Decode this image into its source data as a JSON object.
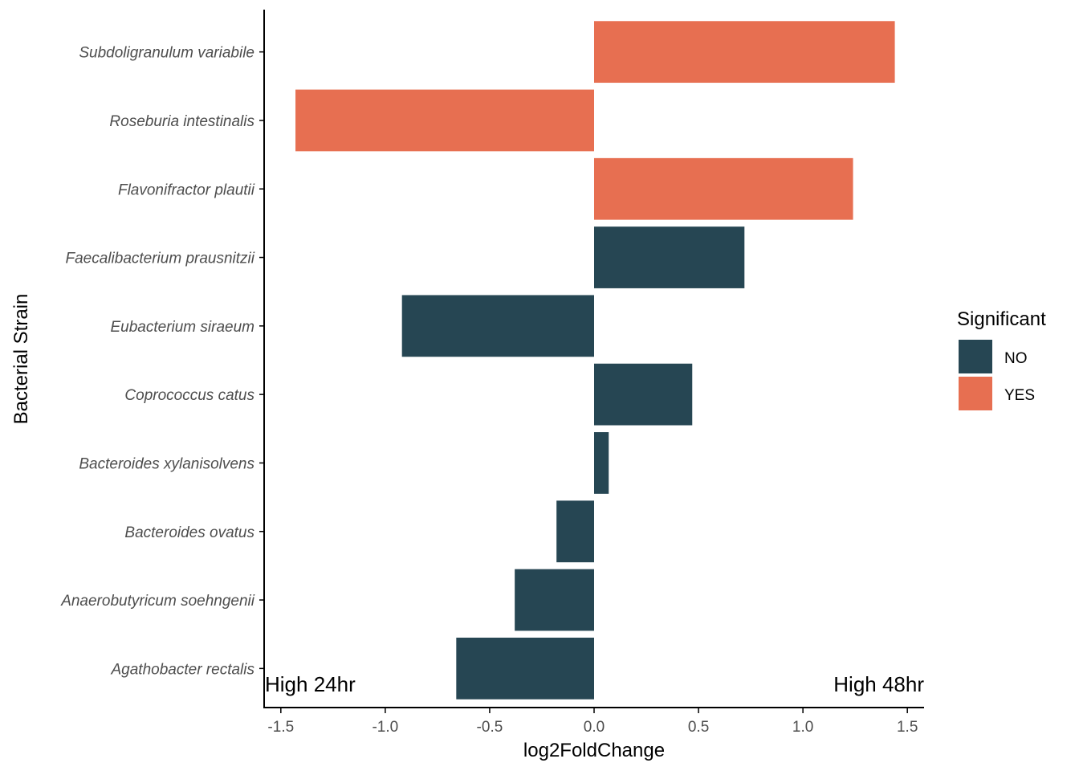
{
  "chart_data": {
    "type": "bar",
    "orientation": "horizontal",
    "categories": [
      "Subdoligranulum variabile",
      "Roseburia intestinalis",
      "Flavonifractor plautii",
      "Faecalibacterium prausnitzii",
      "Eubacterium siraeum",
      "Coprococcus catus",
      "Bacteroides xylanisolvens",
      "Bacteroides ovatus",
      "Anaerobutyricum soehngenii",
      "Agathobacter rectalis"
    ],
    "values": [
      1.44,
      -1.43,
      1.24,
      0.72,
      -0.92,
      0.47,
      0.07,
      -0.18,
      -0.38,
      -0.66
    ],
    "significant": [
      "YES",
      "YES",
      "YES",
      "NO",
      "NO",
      "NO",
      "NO",
      "NO",
      "NO",
      "NO"
    ],
    "xlabel": "log2FoldChange",
    "ylabel": "Bacterial Strain",
    "xlim": [
      -1.58,
      1.58
    ],
    "xticks": [
      -1.5,
      -1.0,
      -0.5,
      0.0,
      0.5,
      1.0,
      1.5
    ],
    "xtick_labels": [
      "-1.5",
      "-1.0",
      "-0.5",
      "0.0",
      "0.5",
      "1.0",
      "1.5"
    ],
    "grid": false,
    "legend": {
      "title": "Significant",
      "position": "right",
      "entries": [
        {
          "label": "NO",
          "color": "#264653"
        },
        {
          "label": "YES",
          "color": "#E76F51"
        }
      ]
    },
    "annotations": {
      "left": "High 24hr",
      "right": "High 48hr"
    }
  }
}
